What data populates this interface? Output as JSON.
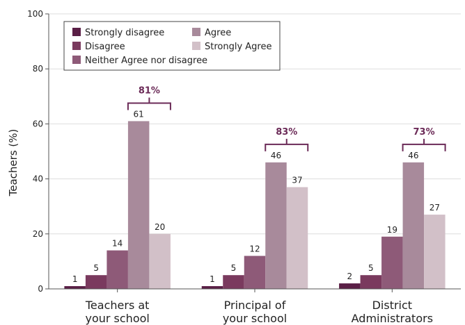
{
  "chart_data": {
    "type": "bar",
    "ylabel": "Teachers (%)",
    "ylim": [
      0,
      100
    ],
    "yticks": [
      0,
      20,
      40,
      60,
      80,
      100
    ],
    "grid": true,
    "legend_position": "top-left",
    "categories": [
      [
        "Teachers at",
        "your school"
      ],
      [
        "Principal of",
        "your school"
      ],
      [
        "District",
        "Administrators"
      ]
    ],
    "series": [
      {
        "name": "Strongly disagree",
        "color": "#5a1f46",
        "values": [
          1,
          1,
          2
        ]
      },
      {
        "name": "Disagree",
        "color": "#7a3a5e",
        "values": [
          5,
          5,
          5
        ]
      },
      {
        "name": "Neither Agree nor disagree",
        "color": "#8e5a78",
        "values": [
          14,
          12,
          19
        ]
      },
      {
        "name": "Agree",
        "color": "#a88a9b",
        "values": [
          61,
          46,
          46
        ]
      },
      {
        "name": "Strongly Agree",
        "color": "#d2c0c8",
        "values": [
          20,
          37,
          27
        ]
      }
    ],
    "brackets": [
      {
        "label": "81%",
        "category": 0
      },
      {
        "label": "83%",
        "category": 1
      },
      {
        "label": "73%",
        "category": 2
      }
    ],
    "bracket_color": "#6b2a57"
  }
}
